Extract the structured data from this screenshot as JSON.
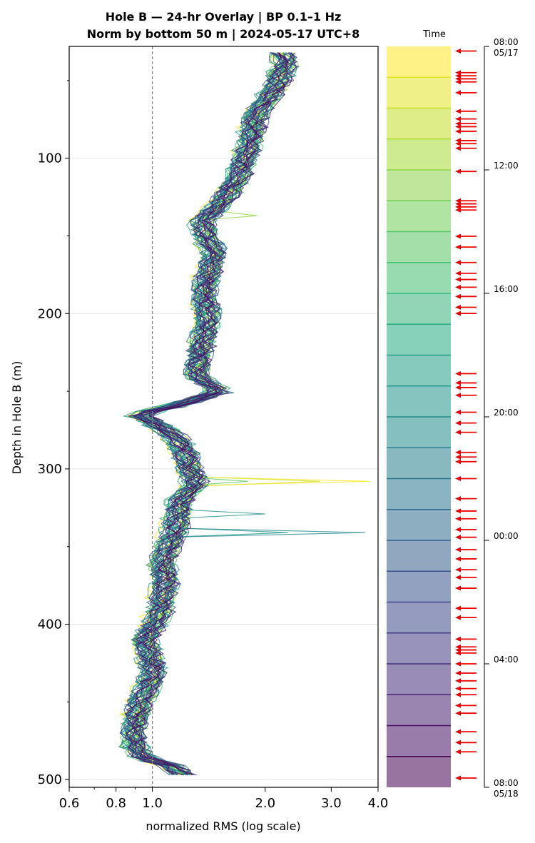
{
  "chart_data": {
    "type": "line",
    "title_line1": "Hole B — 24-hr Overlay  |  BP 0.1–1 Hz",
    "title_line2": "Norm by bottom 50 m  |  2024-05-17 UTC+8",
    "xlabel": "normalized RMS  (log scale)",
    "ylabel": "Depth in Hole B (m)",
    "x_scale": "log",
    "xlim": [
      0.6,
      4.0
    ],
    "ylim": [
      505,
      28
    ],
    "x_ticks": [
      "0.6",
      "0.8",
      "1.0",
      "2.0",
      "3.0",
      "4.0"
    ],
    "x_tick_values": [
      0.6,
      0.8,
      1.0,
      2.0,
      3.0,
      4.0
    ],
    "y_ticks": [
      "100",
      "200",
      "300",
      "400",
      "500"
    ],
    "y_tick_values": [
      100,
      200,
      300,
      400,
      500
    ],
    "reference_line": {
      "x": 1.0,
      "style": "dashed",
      "color": "#808080"
    },
    "grid": "horizontal",
    "colormap": "viridis",
    "depth_profile": [
      [
        32,
        2.2
      ],
      [
        40,
        2.25
      ],
      [
        50,
        2.15
      ],
      [
        60,
        2.05
      ],
      [
        70,
        1.9
      ],
      [
        80,
        1.85
      ],
      [
        90,
        1.8
      ],
      [
        100,
        1.75
      ],
      [
        110,
        1.7
      ],
      [
        120,
        1.6
      ],
      [
        130,
        1.5
      ],
      [
        140,
        1.35
      ],
      [
        150,
        1.38
      ],
      [
        160,
        1.45
      ],
      [
        170,
        1.42
      ],
      [
        180,
        1.38
      ],
      [
        190,
        1.36
      ],
      [
        200,
        1.4
      ],
      [
        210,
        1.38
      ],
      [
        220,
        1.34
      ],
      [
        230,
        1.32
      ],
      [
        240,
        1.3
      ],
      [
        250,
        1.5
      ],
      [
        258,
        1.2
      ],
      [
        265,
        0.9
      ],
      [
        270,
        1.0
      ],
      [
        280,
        1.15
      ],
      [
        290,
        1.22
      ],
      [
        300,
        1.25
      ],
      [
        310,
        1.3
      ],
      [
        320,
        1.18
      ],
      [
        330,
        1.16
      ],
      [
        340,
        1.14
      ],
      [
        350,
        1.1
      ],
      [
        360,
        1.05
      ],
      [
        370,
        1.08
      ],
      [
        380,
        1.06
      ],
      [
        390,
        1.05
      ],
      [
        400,
        1.0
      ],
      [
        410,
        0.95
      ],
      [
        420,
        0.98
      ],
      [
        430,
        1.0
      ],
      [
        440,
        0.97
      ],
      [
        450,
        0.92
      ],
      [
        460,
        0.9
      ],
      [
        470,
        0.88
      ],
      [
        480,
        0.9
      ],
      [
        487,
        0.95
      ],
      [
        490,
        1.1
      ],
      [
        497,
        1.2
      ]
    ],
    "series_count": 48,
    "spikes": [
      {
        "depth": 308,
        "x": 3.8,
        "series": 0
      },
      {
        "depth": 308,
        "x": 2.8,
        "series": 3
      },
      {
        "depth": 308,
        "x": 1.8,
        "series": 12
      },
      {
        "depth": 342,
        "x": 3.7,
        "series": 25
      },
      {
        "depth": 342,
        "x": 2.3,
        "series": 22
      },
      {
        "depth": 328,
        "x": 2.0,
        "series": 24
      },
      {
        "depth": 252,
        "x": 1.65,
        "series": 30
      },
      {
        "depth": 136,
        "x": 1.9,
        "series": 8
      }
    ],
    "colorbar": {
      "label": "Time",
      "ticks": [
        "08:00\n05/17",
        "12:00",
        "16:00",
        "20:00",
        "00:00",
        "04:00",
        "08:00\n05/18"
      ],
      "tick_hours": [
        0,
        4,
        8,
        12,
        16,
        20,
        24
      ],
      "bands": 24
    },
    "arrow_hours": [
      0.15,
      0.85,
      0.95,
      1.05,
      1.15,
      1.5,
      2.1,
      2.35,
      2.5,
      2.6,
      2.75,
      3.05,
      3.15,
      3.3,
      4.05,
      5.0,
      5.1,
      5.2,
      5.3,
      6.15,
      6.5,
      7.0,
      7.35,
      7.55,
      7.8,
      8.1,
      8.45,
      8.65,
      10.6,
      10.9,
      11.05,
      11.3,
      11.85,
      12.2,
      12.5,
      13.15,
      13.3,
      13.45,
      14.0,
      14.65,
      15.05,
      15.3,
      15.65,
      15.9,
      16.3,
      16.6,
      16.95,
      17.2,
      17.55,
      18.2,
      18.5,
      19.2,
      19.45,
      19.55,
      19.65,
      20.0,
      20.3,
      20.55,
      20.8,
      21.0,
      21.35,
      21.6,
      22.2,
      22.55,
      22.85,
      23.7
    ]
  }
}
